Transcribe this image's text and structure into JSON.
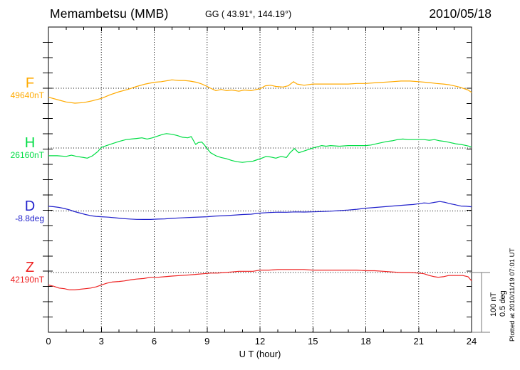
{
  "header": {
    "station": "Memambetsu (MMB)",
    "coords": "GG ( 43.91°, 144.19°)",
    "date": "2010/05/18"
  },
  "x_axis": {
    "label": "U T (hour)",
    "ticks": [
      "0",
      "3",
      "6",
      "9",
      "12",
      "15",
      "18",
      "21",
      "24"
    ]
  },
  "scalebar": {
    "line1": "100 nT",
    "line2": "0.5 deg"
  },
  "footer": {
    "note": "Plotted at 2010/11/19 07:01 UT"
  },
  "chart_data": {
    "type": "line",
    "title": "Memambetsu (MMB) magnetogram 2010/05/18",
    "xlabel": "U T (hour)",
    "x_range": [
      0,
      24
    ],
    "x_major_tick": 3,
    "x_minor_tick": 1,
    "grid": "dotted vertical every 3h, dotted horizontal baseline per trace",
    "scale_bar": {
      "nT": 100,
      "deg": 0.5
    },
    "series": [
      {
        "name": "F",
        "base_label": "49640nT",
        "unit": "nT",
        "base": 49640,
        "color": "#FFAA00",
        "baseline_y": 124,
        "points": [
          [
            0,
            49625
          ],
          [
            0.5,
            49621
          ],
          [
            1,
            49617
          ],
          [
            1.5,
            49615
          ],
          [
            2,
            49616
          ],
          [
            2.5,
            49619
          ],
          [
            3,
            49623
          ],
          [
            3.5,
            49629
          ],
          [
            4,
            49634
          ],
          [
            4.5,
            49638
          ],
          [
            5,
            49643
          ],
          [
            5.5,
            49647
          ],
          [
            6,
            49650
          ],
          [
            6.4,
            49651
          ],
          [
            6.8,
            49653
          ],
          [
            7,
            49654
          ],
          [
            7.4,
            49653
          ],
          [
            7.7,
            49653
          ],
          [
            8,
            49652
          ],
          [
            8.4,
            49650
          ],
          [
            8.7,
            49647
          ],
          [
            9,
            49643
          ],
          [
            9.2,
            49640
          ],
          [
            9.5,
            49636
          ],
          [
            9.8,
            49638
          ],
          [
            10.1,
            49636
          ],
          [
            10.4,
            49637
          ],
          [
            10.8,
            49635
          ],
          [
            11.1,
            49637
          ],
          [
            11.5,
            49636
          ],
          [
            11.8,
            49638
          ],
          [
            12,
            49639
          ],
          [
            12.3,
            49644
          ],
          [
            12.6,
            49645
          ],
          [
            12.9,
            49643
          ],
          [
            13.3,
            49642
          ],
          [
            13.6,
            49644
          ],
          [
            13.9,
            49651
          ],
          [
            14.1,
            49647
          ],
          [
            14.5,
            49645
          ],
          [
            15,
            49647
          ],
          [
            15.5,
            49647
          ],
          [
            16,
            49647
          ],
          [
            16.5,
            49647
          ],
          [
            17,
            49647
          ],
          [
            17.5,
            49648
          ],
          [
            18,
            49648
          ],
          [
            18.5,
            49649
          ],
          [
            19,
            49650
          ],
          [
            19.5,
            49651
          ],
          [
            20,
            49652
          ],
          [
            20.5,
            49652
          ],
          [
            21,
            49651
          ],
          [
            21.4,
            49650
          ],
          [
            21.7,
            49649
          ],
          [
            22,
            49648
          ],
          [
            22.4,
            49647
          ],
          [
            22.7,
            49646
          ],
          [
            23,
            49644
          ],
          [
            23.3,
            49642
          ],
          [
            23.6,
            49639
          ],
          [
            23.8,
            49637
          ],
          [
            24,
            49633
          ]
        ]
      },
      {
        "name": "H",
        "base_label": "26160nT",
        "unit": "nT",
        "base": 26160,
        "color": "#00DD44",
        "baseline_y": 208,
        "points": [
          [
            0,
            26147
          ],
          [
            0.5,
            26147
          ],
          [
            1,
            26146
          ],
          [
            1.3,
            26148
          ],
          [
            1.6,
            26146
          ],
          [
            2,
            26144
          ],
          [
            2.2,
            26143
          ],
          [
            2.5,
            26147
          ],
          [
            2.8,
            26154
          ],
          [
            3,
            26161
          ],
          [
            3.3,
            26164
          ],
          [
            3.6,
            26167
          ],
          [
            4,
            26171
          ],
          [
            4.4,
            26174
          ],
          [
            4.7,
            26175
          ],
          [
            5,
            26176
          ],
          [
            5.3,
            26177
          ],
          [
            5.6,
            26175
          ],
          [
            5.9,
            26177
          ],
          [
            6.2,
            26180
          ],
          [
            6.5,
            26183
          ],
          [
            6.7,
            26184
          ],
          [
            7,
            26183
          ],
          [
            7.3,
            26181
          ],
          [
            7.6,
            26178
          ],
          [
            7.9,
            26177
          ],
          [
            8.1,
            26179
          ],
          [
            8.35,
            26166
          ],
          [
            8.5,
            26169
          ],
          [
            8.7,
            26170
          ],
          [
            8.85,
            26165
          ],
          [
            9,
            26159
          ],
          [
            9.2,
            26152
          ],
          [
            9.5,
            26147
          ],
          [
            9.8,
            26144
          ],
          [
            10.1,
            26142
          ],
          [
            10.4,
            26139
          ],
          [
            10.7,
            26137
          ],
          [
            11,
            26136
          ],
          [
            11.3,
            26137
          ],
          [
            11.6,
            26138
          ],
          [
            11.9,
            26141
          ],
          [
            12.1,
            26143
          ],
          [
            12.35,
            26146
          ],
          [
            12.6,
            26145
          ],
          [
            12.9,
            26143
          ],
          [
            13.2,
            26146
          ],
          [
            13.5,
            26144
          ],
          [
            13.7,
            26152
          ],
          [
            13.95,
            26159
          ],
          [
            14.2,
            26152
          ],
          [
            14.5,
            26155
          ],
          [
            14.8,
            26158
          ],
          [
            15,
            26160
          ],
          [
            15.25,
            26162
          ],
          [
            15.5,
            26164
          ],
          [
            15.75,
            26163
          ],
          [
            16,
            26164
          ],
          [
            16.5,
            26163
          ],
          [
            17,
            26164
          ],
          [
            17.5,
            26164
          ],
          [
            18,
            26164
          ],
          [
            18.3,
            26165
          ],
          [
            18.6,
            26167
          ],
          [
            18.9,
            26169
          ],
          [
            19.2,
            26171
          ],
          [
            19.5,
            26172
          ],
          [
            19.8,
            26174
          ],
          [
            20.1,
            26175
          ],
          [
            20.4,
            26174
          ],
          [
            20.7,
            26174
          ],
          [
            21,
            26174
          ],
          [
            21.3,
            26174
          ],
          [
            21.6,
            26173
          ],
          [
            21.9,
            26174
          ],
          [
            22.2,
            26172
          ],
          [
            22.5,
            26171
          ],
          [
            22.8,
            26169
          ],
          [
            23.1,
            26167
          ],
          [
            23.4,
            26166
          ],
          [
            23.7,
            26164
          ],
          [
            24,
            26162
          ]
        ]
      },
      {
        "name": "D",
        "base_label": "-8.8deg",
        "unit": "deg",
        "base": -8.8,
        "color": "#2222CC",
        "baseline_y": 296.5,
        "points": [
          [
            0,
            -8.761
          ],
          [
            0.3,
            -8.764
          ],
          [
            0.6,
            -8.77
          ],
          [
            0.9,
            -8.779
          ],
          [
            1.2,
            -8.791
          ],
          [
            1.5,
            -8.806
          ],
          [
            1.8,
            -8.818
          ],
          [
            2.1,
            -8.83
          ],
          [
            2.4,
            -8.839
          ],
          [
            2.7,
            -8.845
          ],
          [
            3,
            -8.848
          ],
          [
            3.4,
            -8.852
          ],
          [
            3.8,
            -8.857
          ],
          [
            4.2,
            -8.863
          ],
          [
            4.6,
            -8.867
          ],
          [
            5,
            -8.87
          ],
          [
            5.4,
            -8.871
          ],
          [
            5.8,
            -8.871
          ],
          [
            6.2,
            -8.868
          ],
          [
            6.6,
            -8.866
          ],
          [
            7,
            -8.862
          ],
          [
            7.5,
            -8.858
          ],
          [
            8,
            -8.854
          ],
          [
            8.5,
            -8.851
          ],
          [
            9,
            -8.848
          ],
          [
            9.5,
            -8.842
          ],
          [
            10,
            -8.839
          ],
          [
            10.5,
            -8.835
          ],
          [
            11,
            -8.83
          ],
          [
            11.5,
            -8.827
          ],
          [
            12,
            -8.818
          ],
          [
            12.5,
            -8.813
          ],
          [
            13,
            -8.81
          ],
          [
            13.5,
            -8.811
          ],
          [
            14,
            -8.808
          ],
          [
            14.5,
            -8.809
          ],
          [
            15,
            -8.807
          ],
          [
            15.5,
            -8.805
          ],
          [
            16,
            -8.802
          ],
          [
            16.5,
            -8.797
          ],
          [
            17,
            -8.792
          ],
          [
            17.5,
            -8.786
          ],
          [
            18,
            -8.777
          ],
          [
            18.5,
            -8.771
          ],
          [
            19,
            -8.765
          ],
          [
            19.5,
            -8.759
          ],
          [
            20,
            -8.753
          ],
          [
            20.4,
            -8.749
          ],
          [
            20.7,
            -8.746
          ],
          [
            21,
            -8.739
          ],
          [
            21.3,
            -8.733
          ],
          [
            21.6,
            -8.736
          ],
          [
            21.9,
            -8.728
          ],
          [
            22.2,
            -8.721
          ],
          [
            22.5,
            -8.728
          ],
          [
            22.8,
            -8.74
          ],
          [
            23.1,
            -8.749
          ],
          [
            23.4,
            -8.759
          ],
          [
            23.7,
            -8.761
          ],
          [
            24,
            -8.765
          ]
        ]
      },
      {
        "name": "Z",
        "base_label": "42190nT",
        "unit": "nT",
        "base": 42190,
        "color": "#EE2222",
        "baseline_y": 383,
        "points": [
          [
            0,
            42169
          ],
          [
            0.3,
            42167
          ],
          [
            0.6,
            42164
          ],
          [
            0.9,
            42163
          ],
          [
            1.2,
            42161
          ],
          [
            1.5,
            42161
          ],
          [
            1.8,
            42162
          ],
          [
            2.1,
            42163
          ],
          [
            2.4,
            42164
          ],
          [
            2.7,
            42166
          ],
          [
            3,
            42169
          ],
          [
            3.3,
            42172
          ],
          [
            3.6,
            42174
          ],
          [
            4,
            42175
          ],
          [
            4.3,
            42176
          ],
          [
            4.7,
            42178
          ],
          [
            5,
            42179
          ],
          [
            5.4,
            42180
          ],
          [
            5.8,
            42182
          ],
          [
            6.2,
            42182
          ],
          [
            6.6,
            42183
          ],
          [
            7,
            42184
          ],
          [
            7.5,
            42185
          ],
          [
            8,
            42186
          ],
          [
            8.4,
            42187
          ],
          [
            8.8,
            42188
          ],
          [
            9.2,
            42189
          ],
          [
            9.6,
            42189
          ],
          [
            10,
            42190
          ],
          [
            10.4,
            42191
          ],
          [
            10.8,
            42192
          ],
          [
            11.2,
            42192
          ],
          [
            11.6,
            42192
          ],
          [
            12,
            42194
          ],
          [
            12.5,
            42194
          ],
          [
            13,
            42195
          ],
          [
            13.5,
            42195
          ],
          [
            14,
            42195
          ],
          [
            14.5,
            42195
          ],
          [
            15,
            42194
          ],
          [
            16,
            42194
          ],
          [
            17,
            42194
          ],
          [
            17.5,
            42194
          ],
          [
            18,
            42193
          ],
          [
            18.5,
            42193
          ],
          [
            19,
            42192
          ],
          [
            19.5,
            42191
          ],
          [
            20,
            42190
          ],
          [
            20.5,
            42190
          ],
          [
            21,
            42189
          ],
          [
            21.3,
            42188
          ],
          [
            21.6,
            42185
          ],
          [
            21.9,
            42183
          ],
          [
            22.1,
            42182
          ],
          [
            22.4,
            42183
          ],
          [
            22.7,
            42185
          ],
          [
            23,
            42185
          ],
          [
            23.2,
            42185
          ],
          [
            23.5,
            42185
          ],
          [
            23.8,
            42183
          ],
          [
            24,
            42176
          ]
        ]
      }
    ]
  }
}
